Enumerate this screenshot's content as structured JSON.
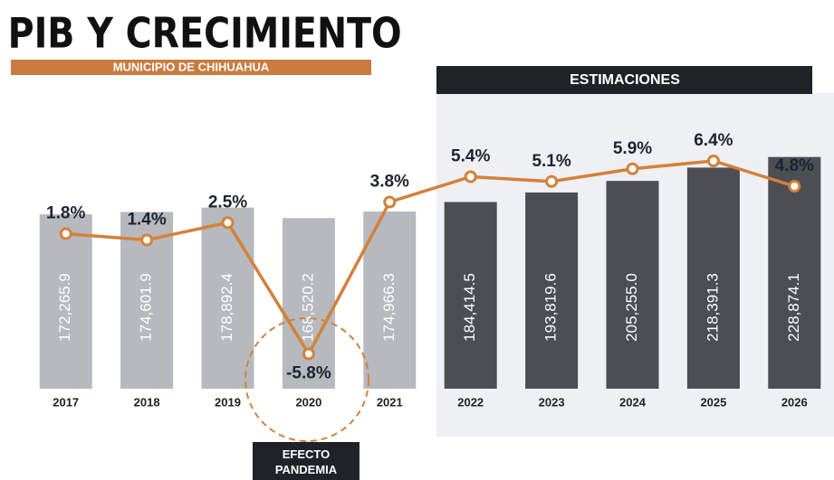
{
  "chart_data": {
    "type": "bar-line",
    "title": "PIB Y CRECIMIENTO",
    "subtitle": "MUNICIPIO DE CHIHUAHUA",
    "annotations": {
      "estimates": "ESTIMACIONES",
      "pandemic": "EFECTO PANDEMIA"
    },
    "categories": [
      "2017",
      "2018",
      "2019",
      "2020",
      "2021",
      "2022",
      "2023",
      "2024",
      "2025",
      "2026"
    ],
    "series": [
      {
        "name": "PIB",
        "type": "bar",
        "colors": [
          "#b6b9bd",
          "#b6b9bd",
          "#b6b9bd",
          "#b6b9bd",
          "#b6b9bd",
          "#4b4e52",
          "#4b4e52",
          "#4b4e52",
          "#4b4e52",
          "#4b4e52"
        ],
        "values": [
          172265.9,
          174601.9,
          178892.4,
          168520.2,
          174966.3,
          184414.5,
          193819.6,
          205255.0,
          218391.3,
          228874.1
        ],
        "value_labels": [
          "172,265.9",
          "174,601.9",
          "178,892.4",
          "168,520.2",
          "174,966.3",
          "184,414.5",
          "193,819.6",
          "205,255.0",
          "218,391.3",
          "228,874.1"
        ]
      },
      {
        "name": "Crecimiento",
        "type": "line",
        "axis": "y2",
        "color": "#d4813a",
        "values": [
          1.8,
          1.4,
          2.5,
          -5.8,
          3.8,
          5.4,
          5.1,
          5.9,
          6.4,
          4.8
        ],
        "value_labels": [
          "1.8%",
          "1.4%",
          "2.5%",
          "-5.8%",
          "3.8%",
          "5.4%",
          "5.1%",
          "5.9%",
          "6.4%",
          "4.8%"
        ]
      }
    ],
    "ylim": [
      0,
      250000
    ],
    "y2lim": [
      -8,
      8
    ]
  }
}
